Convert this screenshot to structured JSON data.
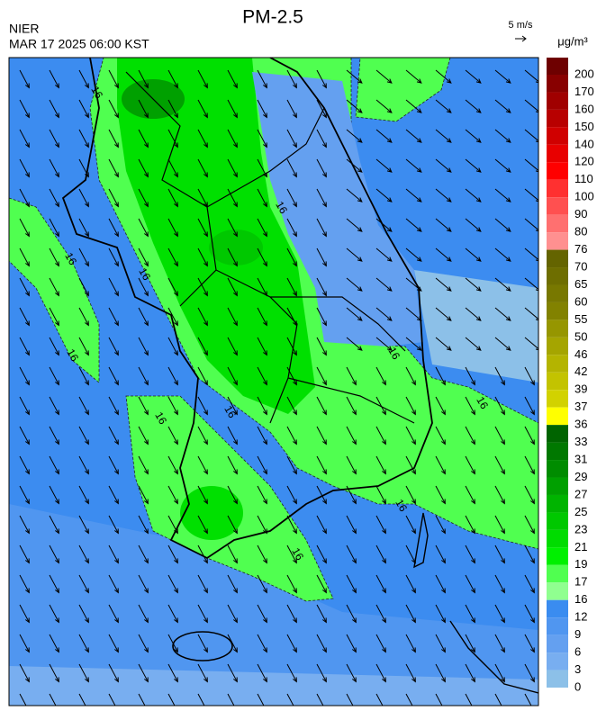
{
  "header": {
    "title": "PM-2.5",
    "source": "NIER",
    "datetime": "MAR 17 2025 06:00 KST",
    "wind_scale": "5 m/s"
  },
  "legend": {
    "unit": "μg/m³",
    "levels": [
      200,
      170,
      160,
      150,
      140,
      120,
      110,
      100,
      90,
      80,
      76,
      70,
      65,
      60,
      55,
      50,
      46,
      42,
      39,
      37,
      36,
      33,
      31,
      29,
      27,
      25,
      23,
      21,
      19,
      17,
      16,
      12,
      9,
      6,
      3,
      0
    ],
    "colors": [
      "#6e0000",
      "#880000",
      "#a00000",
      "#b80000",
      "#d00000",
      "#e80000",
      "#ff0000",
      "#ff3030",
      "#ff5050",
      "#ff7070",
      "#ff9090",
      "#646400",
      "#6e6e00",
      "#787800",
      "#828200",
      "#969600",
      "#a5a500",
      "#b4b400",
      "#c3c300",
      "#d2d200",
      "#ffff00",
      "#006400",
      "#007800",
      "#008c00",
      "#00a000",
      "#00b400",
      "#00c800",
      "#00dc00",
      "#00f000",
      "#50ff50",
      "#90ff90",
      "#3a8cf0",
      "#5096f0",
      "#64a0f0",
      "#78aef0",
      "#8cc0e8"
    ]
  },
  "map": {
    "contour_labels": [
      "16",
      "16",
      "16",
      "16",
      "16",
      "16",
      "16",
      "16",
      "16",
      "16",
      "16"
    ]
  }
}
